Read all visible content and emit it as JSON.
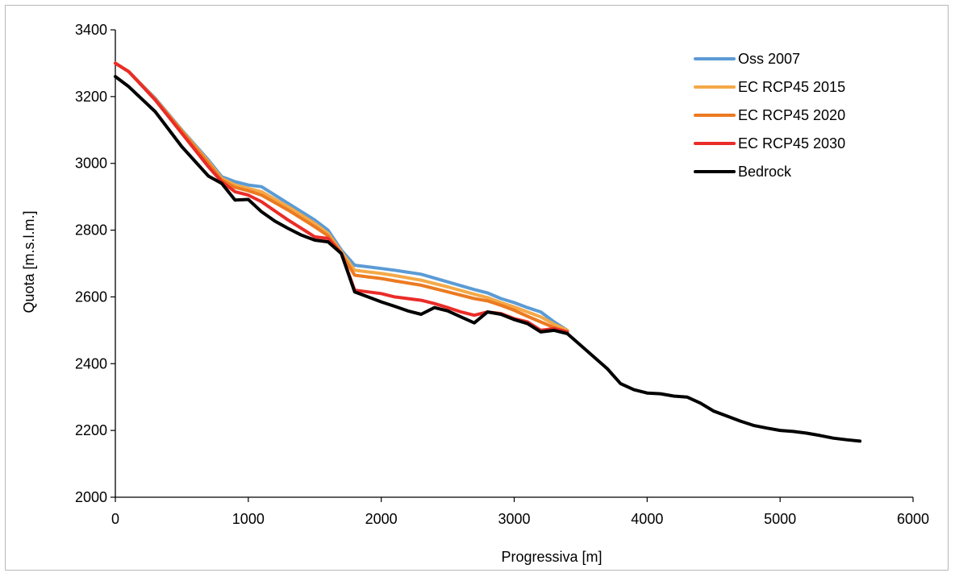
{
  "chart_data": {
    "type": "line",
    "xlabel": "Progressiva [m]",
    "ylabel": "Quota [m.s.l.m.]",
    "xlim": [
      0,
      6000
    ],
    "ylim": [
      2000,
      3400
    ],
    "xticks": [
      "0",
      "1000",
      "2000",
      "3000",
      "4000",
      "5000",
      "6000"
    ],
    "yticks": [
      "2000",
      "2200",
      "2400",
      "2600",
      "2800",
      "3000",
      "3200",
      "3400"
    ],
    "grid": false,
    "legend_position": "top-right",
    "series": [
      {
        "name": "Oss 2007",
        "color": "#5b9bd5",
        "x": [
          0,
          100,
          300,
          500,
          700,
          800,
          900,
          1000,
          1100,
          1300,
          1500,
          1600,
          1700,
          1800,
          1900,
          2000,
          2100,
          2300,
          2500,
          2700,
          2800,
          2900,
          3000,
          3100,
          3200,
          3300,
          3400
        ],
        "y": [
          3300,
          3275,
          3195,
          3100,
          3010,
          2960,
          2945,
          2935,
          2930,
          2880,
          2830,
          2800,
          2740,
          2695,
          2690,
          2685,
          2680,
          2668,
          2645,
          2622,
          2612,
          2595,
          2583,
          2568,
          2555,
          2525,
          2500
        ]
      },
      {
        "name": "EC RCP45 2015",
        "color": "#f4a947",
        "x": [
          0,
          100,
          300,
          500,
          700,
          800,
          900,
          1000,
          1100,
          1300,
          1500,
          1600,
          1700,
          1800,
          1900,
          2000,
          2100,
          2300,
          2500,
          2700,
          2800,
          2900,
          3000,
          3100,
          3200,
          3300,
          3400
        ],
        "y": [
          3300,
          3275,
          3193,
          3098,
          3005,
          2955,
          2935,
          2925,
          2915,
          2870,
          2820,
          2790,
          2735,
          2680,
          2675,
          2670,
          2664,
          2650,
          2630,
          2608,
          2598,
          2583,
          2570,
          2555,
          2540,
          2518,
          2500
        ]
      },
      {
        "name": "EC RCP45 2020",
        "color": "#ec7a21",
        "x": [
          0,
          100,
          300,
          500,
          700,
          800,
          900,
          1000,
          1100,
          1300,
          1500,
          1600,
          1700,
          1800,
          1900,
          2000,
          2100,
          2300,
          2500,
          2700,
          2800,
          2900,
          3000,
          3100,
          3200,
          3300,
          3400
        ],
        "y": [
          3300,
          3275,
          3192,
          3096,
          3000,
          2950,
          2928,
          2918,
          2905,
          2860,
          2810,
          2783,
          2730,
          2665,
          2660,
          2655,
          2648,
          2635,
          2615,
          2595,
          2588,
          2575,
          2560,
          2542,
          2525,
          2508,
          2495
        ]
      },
      {
        "name": "EC RCP45 2030",
        "color": "#ea2c28",
        "x": [
          0,
          100,
          300,
          500,
          700,
          800,
          900,
          1000,
          1100,
          1300,
          1500,
          1600,
          1700,
          1800,
          1900,
          2000,
          2100,
          2200,
          2300,
          2400,
          2500,
          2600,
          2700,
          2800,
          2900,
          3000,
          3100,
          3200,
          3300,
          3400
        ],
        "y": [
          3300,
          3275,
          3190,
          3090,
          2990,
          2945,
          2915,
          2905,
          2885,
          2830,
          2780,
          2775,
          2730,
          2620,
          2615,
          2610,
          2600,
          2595,
          2590,
          2580,
          2568,
          2555,
          2545,
          2555,
          2550,
          2535,
          2525,
          2500,
          2505,
          2495
        ]
      },
      {
        "name": "Bedrock",
        "color": "#000000",
        "x": [
          0,
          100,
          300,
          500,
          700,
          800,
          900,
          1000,
          1100,
          1200,
          1300,
          1400,
          1500,
          1600,
          1700,
          1800,
          1900,
          2000,
          2100,
          2200,
          2300,
          2400,
          2500,
          2600,
          2700,
          2800,
          2900,
          3000,
          3100,
          3200,
          3300,
          3400,
          3500,
          3600,
          3700,
          3800,
          3900,
          4000,
          4100,
          4200,
          4300,
          4400,
          4500,
          4600,
          4700,
          4800,
          4900,
          5000,
          5100,
          5200,
          5300,
          5400,
          5500,
          5600
        ],
        "y": [
          3260,
          3230,
          3155,
          3050,
          2962,
          2940,
          2890,
          2892,
          2855,
          2827,
          2805,
          2785,
          2770,
          2765,
          2730,
          2615,
          2600,
          2585,
          2572,
          2558,
          2548,
          2568,
          2558,
          2540,
          2522,
          2555,
          2548,
          2532,
          2520,
          2495,
          2500,
          2490,
          2455,
          2420,
          2385,
          2340,
          2322,
          2312,
          2310,
          2303,
          2300,
          2282,
          2258,
          2243,
          2228,
          2215,
          2207,
          2200,
          2197,
          2192,
          2185,
          2177,
          2172,
          2168
        ]
      }
    ]
  }
}
